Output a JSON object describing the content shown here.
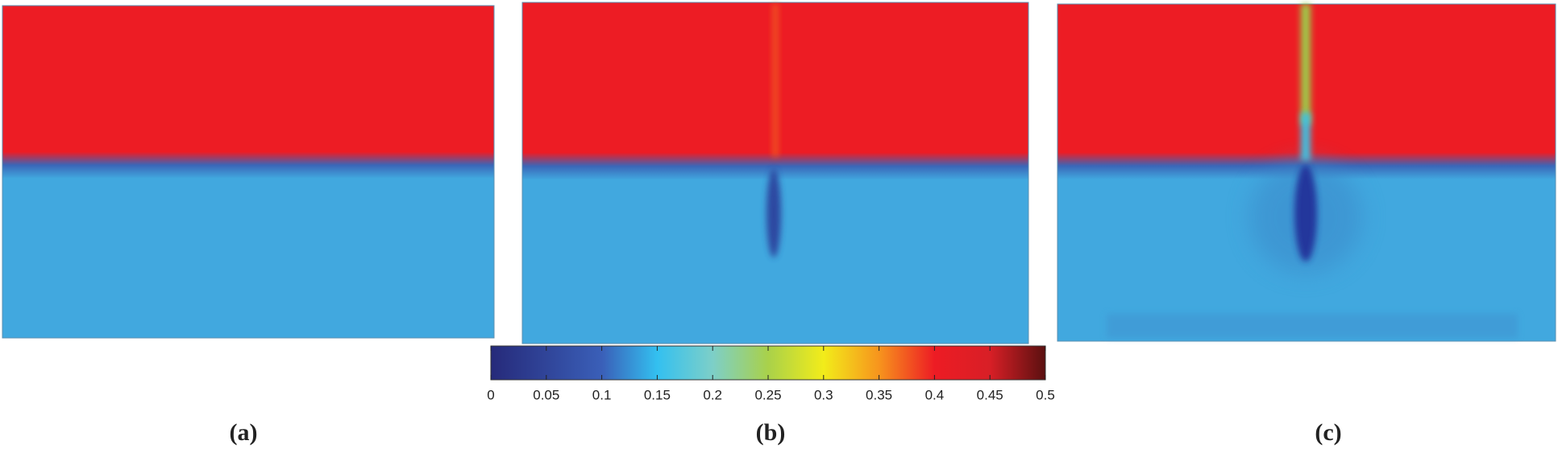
{
  "chart_data": {
    "type": "colorbar",
    "panels": [
      "(a)",
      "(b)",
      "(c)"
    ],
    "xlim": [
      0,
      0.5
    ],
    "xticks": [
      0,
      0.05,
      0.1,
      0.15,
      0.2,
      0.25,
      0.3,
      0.35,
      0.4,
      0.45,
      0.5
    ]
  }
}
